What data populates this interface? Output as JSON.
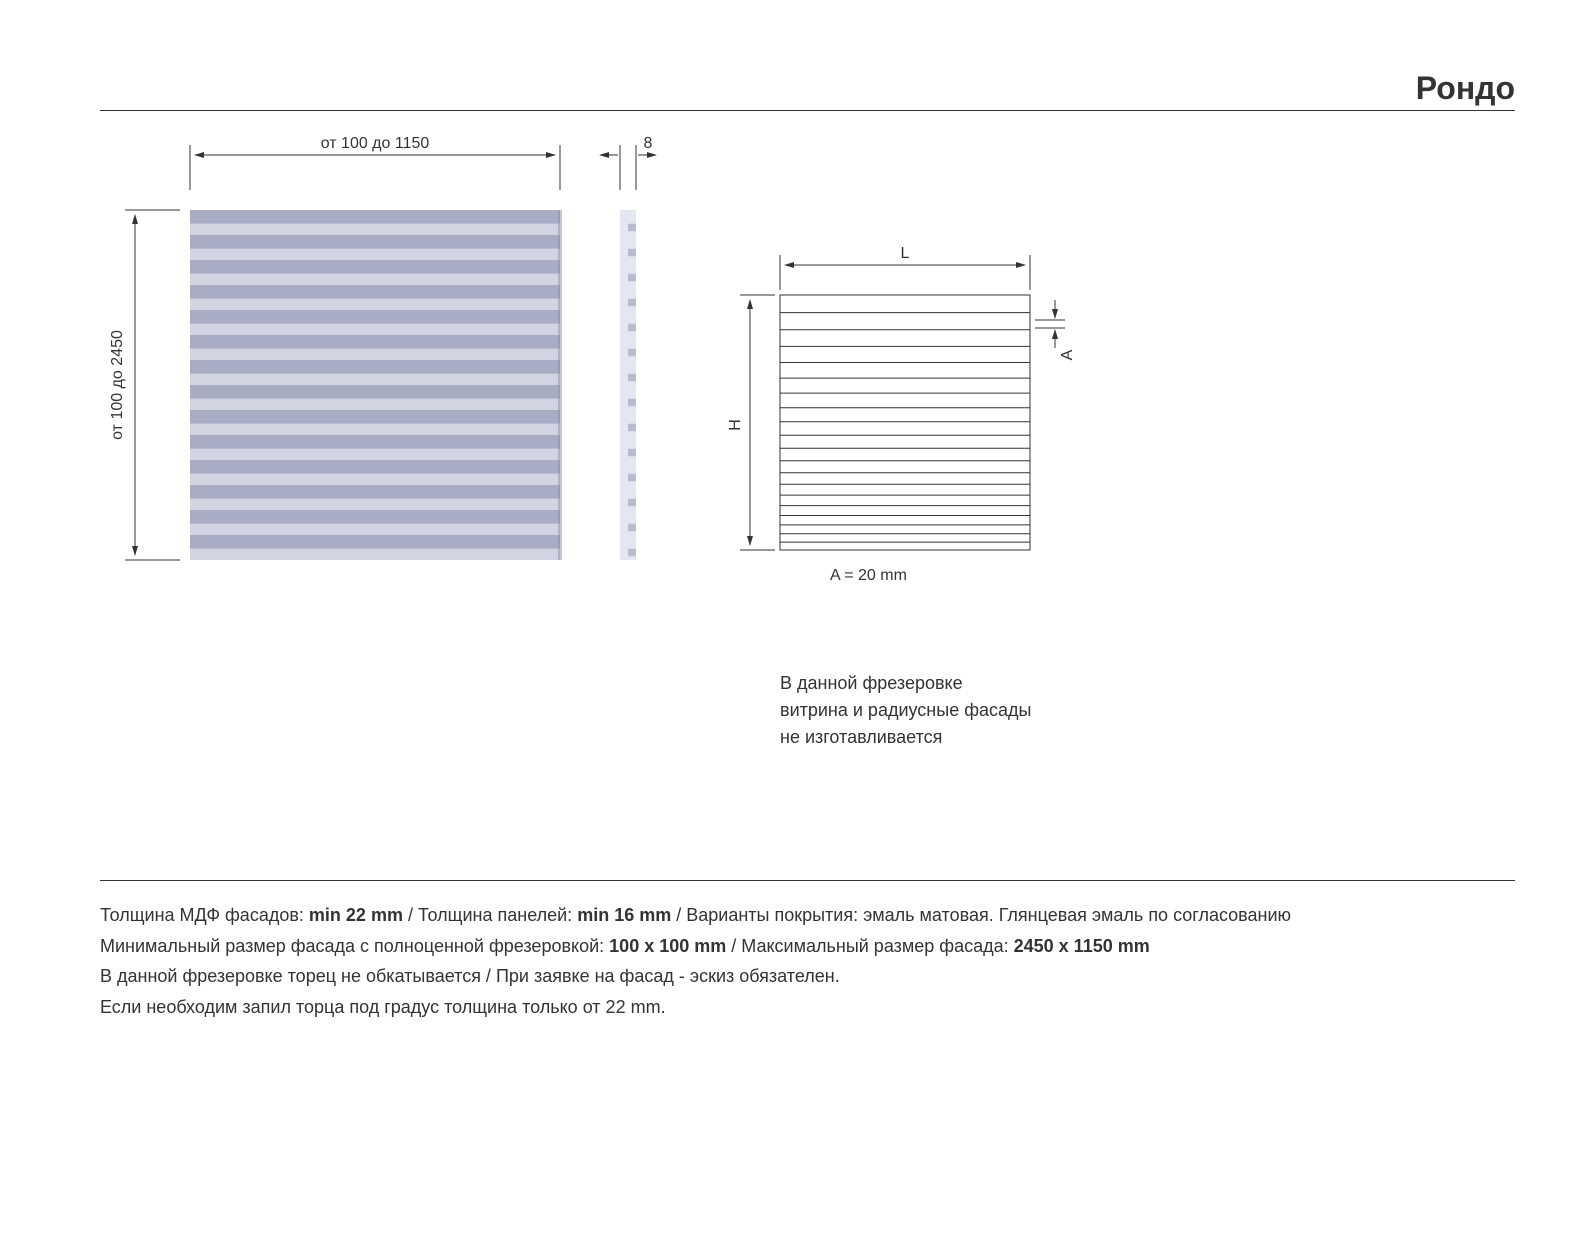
{
  "title": "Рондо",
  "drawing": {
    "width_label": "от 100 до 1150",
    "height_label": "от 100 до 2450",
    "profile_depth_label": "8",
    "panel": {
      "stripe_count": 14,
      "stripe_dark_color": "#a8adc4",
      "stripe_light_color": "#d2d4e2",
      "background_color": "#ffffff"
    },
    "schematic": {
      "label_L": "L",
      "label_H": "H",
      "label_A": "A",
      "row_count": 20,
      "a_value_text": "A = 20 mm",
      "line_color": "#333333"
    }
  },
  "note": {
    "line1": "В данной фрезеровке",
    "line2": "витрина и радиусные фасады",
    "line3": "не изготавливается"
  },
  "specs": {
    "line1_pre": "Толщина МДФ фасадов: ",
    "line1_b1": "min 22 mm",
    "line1_mid1": " / Толщина панелей: ",
    "line1_b2": "min 16 mm",
    "line1_post": " / Варианты покрытия: эмаль матовая. Глянцевая эмаль по согласованию",
    "line2_pre": "Минимальный размер фасада с полноценной фрезеровкой: ",
    "line2_b1": "100 х 100 mm",
    "line2_mid": " / Максимальный размер фасада: ",
    "line2_b2": "2450 х 1150 mm",
    "line3": "В данной фрезеровке торец не обкатывается / При заявке на фасад - эскиз обязателен.",
    "line4": "Если необходим запил торца под градус толщина только от 22 mm."
  },
  "colors": {
    "text": "#333333",
    "rule": "#333333",
    "background": "#ffffff"
  }
}
